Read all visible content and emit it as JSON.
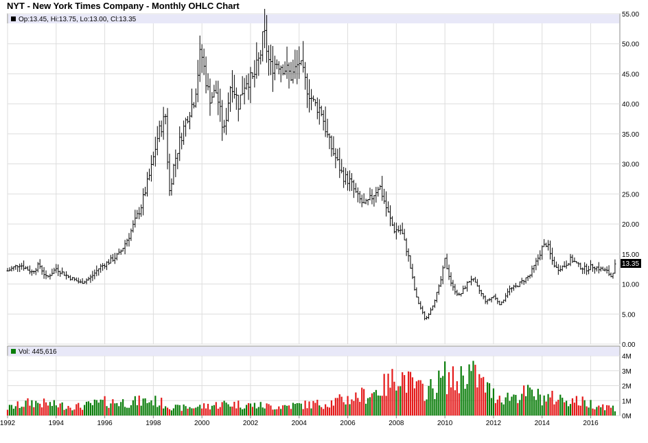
{
  "chart_data": [
    {
      "type": "ohlc",
      "title": "NYT - New York Times Company - Monthly OHLC Chart",
      "legend": "Op:13.45, Hi:13.75, Lo:13.00, Cl:13.35",
      "last_price_label": "13.35",
      "ylim": [
        0,
        55
      ],
      "y_ticks": [
        "55.00",
        "50.00",
        "45.00",
        "40.00",
        "35.00",
        "30.00",
        "25.00",
        "20.00",
        "15.00",
        "10.00",
        "5.00",
        "0.00"
      ],
      "x_ticks": [
        "1992",
        "1994",
        "1996",
        "1998",
        "2000",
        "2002",
        "2004",
        "2006",
        "2008",
        "2010",
        "2012",
        "2014",
        "2016"
      ],
      "series_color": "#000000",
      "grid": true,
      "close_anchors": [
        [
          1992.0,
          12.2
        ],
        [
          1992.5,
          13.3
        ],
        [
          1993.0,
          12.0
        ],
        [
          1993.3,
          13.2
        ],
        [
          1993.6,
          11.0
        ],
        [
          1994.0,
          12.6
        ],
        [
          1994.5,
          11.2
        ],
        [
          1995.0,
          10.2
        ],
        [
          1995.4,
          11.0
        ],
        [
          1995.8,
          12.8
        ],
        [
          1996.2,
          13.8
        ],
        [
          1996.6,
          15.0
        ],
        [
          1997.0,
          18.0
        ],
        [
          1997.5,
          23.0
        ],
        [
          1997.9,
          29.0
        ],
        [
          1998.2,
          35.0
        ],
        [
          1998.5,
          38.0
        ],
        [
          1998.65,
          25.0
        ],
        [
          1998.85,
          30.0
        ],
        [
          1999.1,
          34.0
        ],
        [
          1999.4,
          38.0
        ],
        [
          1999.7,
          41.0
        ],
        [
          1999.95,
          49.0
        ],
        [
          2000.3,
          41.0
        ],
        [
          2000.6,
          42.0
        ],
        [
          2000.9,
          35.0
        ],
        [
          2001.2,
          44.0
        ],
        [
          2001.5,
          40.0
        ],
        [
          2001.8,
          44.0
        ],
        [
          2002.1,
          44.0
        ],
        [
          2002.4,
          48.0
        ],
        [
          2002.55,
          52.0
        ],
        [
          2002.8,
          46.0
        ],
        [
          2003.1,
          47.0
        ],
        [
          2003.4,
          46.0
        ],
        [
          2003.7,
          44.5
        ],
        [
          2004.0,
          47.0
        ],
        [
          2004.3,
          43.0
        ],
        [
          2004.6,
          40.0
        ],
        [
          2004.9,
          39.0
        ],
        [
          2005.2,
          34.0
        ],
        [
          2005.5,
          31.0
        ],
        [
          2005.8,
          28.0
        ],
        [
          2006.1,
          27.0
        ],
        [
          2006.4,
          24.5
        ],
        [
          2006.7,
          23.0
        ],
        [
          2007.0,
          24.5
        ],
        [
          2007.3,
          26.5
        ],
        [
          2007.6,
          22.5
        ],
        [
          2007.9,
          19.0
        ],
        [
          2008.2,
          19.0
        ],
        [
          2008.5,
          14.5
        ],
        [
          2008.8,
          8.0
        ],
        [
          2009.0,
          6.0
        ],
        [
          2009.2,
          4.0
        ],
        [
          2009.5,
          6.5
        ],
        [
          2009.8,
          10.0
        ],
        [
          2010.0,
          14.0
        ],
        [
          2010.3,
          9.5
        ],
        [
          2010.6,
          8.0
        ],
        [
          2010.9,
          10.0
        ],
        [
          2011.1,
          11.0
        ],
        [
          2011.4,
          9.0
        ],
        [
          2011.7,
          7.0
        ],
        [
          2012.0,
          8.0
        ],
        [
          2012.3,
          6.5
        ],
        [
          2012.6,
          9.0
        ],
        [
          2012.9,
          9.5
        ],
        [
          2013.2,
          10.5
        ],
        [
          2013.5,
          11.5
        ],
        [
          2013.8,
          14.0
        ],
        [
          2014.0,
          16.0
        ],
        [
          2014.2,
          16.8
        ],
        [
          2014.4,
          14.0
        ],
        [
          2014.6,
          12.5
        ],
        [
          2014.9,
          13.0
        ],
        [
          2015.2,
          14.2
        ],
        [
          2015.5,
          13.0
        ],
        [
          2015.8,
          12.5
        ],
        [
          2016.1,
          13.0
        ],
        [
          2016.4,
          12.5
        ],
        [
          2016.7,
          12.0
        ],
        [
          2016.85,
          11.2
        ],
        [
          2017.0,
          13.35
        ]
      ]
    },
    {
      "type": "bar",
      "legend": "Vol: 445,616",
      "ylim": [
        0,
        4000000
      ],
      "y_ticks": [
        "4M",
        "3M",
        "2M",
        "1M",
        "0M"
      ],
      "up_color": "#0a7d0a",
      "down_color": "#e41a1a",
      "volume_anchors": [
        [
          1992.0,
          0.5
        ],
        [
          1993.0,
          0.9
        ],
        [
          1994.0,
          0.7
        ],
        [
          1995.0,
          0.6
        ],
        [
          1996.0,
          0.9
        ],
        [
          1997.0,
          0.9
        ],
        [
          1998.0,
          1.0
        ],
        [
          1999.0,
          0.5
        ],
        [
          2000.0,
          0.6
        ],
        [
          2001.0,
          0.8
        ],
        [
          2002.0,
          0.7
        ],
        [
          2003.0,
          0.6
        ],
        [
          2004.0,
          0.7
        ],
        [
          2005.0,
          0.8
        ],
        [
          2006.0,
          1.1
        ],
        [
          2007.0,
          1.5
        ],
        [
          2007.8,
          2.2
        ],
        [
          2008.0,
          3.0
        ],
        [
          2008.5,
          2.2
        ],
        [
          2009.0,
          1.7
        ],
        [
          2009.5,
          1.8
        ],
        [
          2010.0,
          2.6
        ],
        [
          2010.5,
          2.2
        ],
        [
          2010.9,
          3.1
        ],
        [
          2011.5,
          2.2
        ],
        [
          2012.0,
          1.4
        ],
        [
          2012.5,
          1.2
        ],
        [
          2013.0,
          1.4
        ],
        [
          2013.5,
          1.5
        ],
        [
          2014.0,
          1.2
        ],
        [
          2015.0,
          1.1
        ],
        [
          2016.0,
          0.8
        ],
        [
          2017.0,
          0.5
        ]
      ]
    }
  ]
}
